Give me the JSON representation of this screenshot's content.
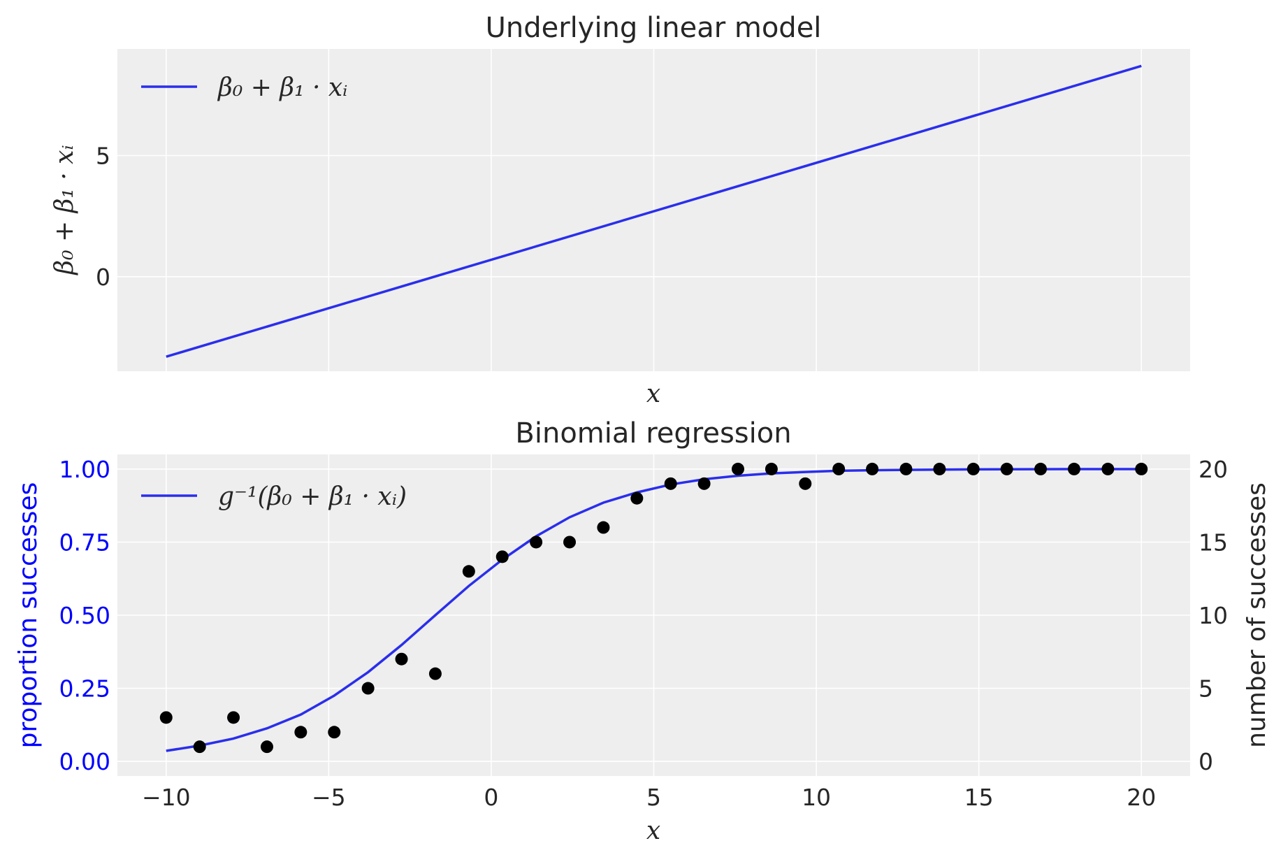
{
  "colors": {
    "line": "#2a2eec",
    "points": "#000000",
    "axes_bg": "#eeeeee",
    "grid": "#ffffff",
    "left_axis": "#0000ff"
  },
  "chart_data": [
    {
      "type": "line",
      "title": "Underlying linear model",
      "xlabel": "x",
      "ylabel": "β₀ + β₁ · xᵢ",
      "xlim": [
        -11.5,
        21.5
      ],
      "ylim": [
        -3.9,
        9.4
      ],
      "xticks": [
        -10,
        -5,
        0,
        5,
        10,
        15,
        20
      ],
      "show_x_tick_labels": false,
      "yticks": [
        0,
        5
      ],
      "ytick_labels": [
        "0",
        "5"
      ],
      "legend": {
        "position": "top-left",
        "label": "β₀ + β₁ · xᵢ"
      },
      "series": [
        {
          "name": "β₀ + β₁ · xᵢ",
          "x": [
            -10,
            20
          ],
          "y": [
            -3.3,
            8.7
          ]
        }
      ]
    },
    {
      "type": "line+scatter",
      "title": "Binomial regression",
      "xlabel": "x",
      "ylabel_left": "proportion successes",
      "ylabel_right": "number of successes",
      "xlim": [
        -11.5,
        21.5
      ],
      "ylim_left": [
        -0.05,
        1.05
      ],
      "ylim_right": [
        -1,
        21
      ],
      "xticks": [
        -10,
        -5,
        0,
        5,
        10,
        15,
        20
      ],
      "xtick_labels": [
        "−10",
        "−5",
        "0",
        "5",
        "10",
        "15",
        "20"
      ],
      "yticks_left": [
        0,
        0.25,
        0.5,
        0.75,
        1.0
      ],
      "ytick_labels_left": [
        "0.00",
        "0.25",
        "0.50",
        "0.75",
        "1.00"
      ],
      "yticks_right": [
        0,
        5,
        10,
        15,
        20
      ],
      "ytick_labels_right": [
        "0",
        "5",
        "10",
        "15",
        "20"
      ],
      "legend": {
        "position": "top-left",
        "label": "g⁻¹(β₀ + β₁ · xᵢ)"
      },
      "series": [
        {
          "name": "g⁻¹(β₀ + β₁ · xᵢ)",
          "axis": "left",
          "x": [
            -10,
            -8.97,
            -7.93,
            -6.9,
            -5.86,
            -4.83,
            -3.79,
            -2.76,
            -1.72,
            -0.69,
            0.34,
            1.38,
            2.41,
            3.45,
            4.48,
            5.52,
            6.55,
            7.59,
            8.62,
            9.66,
            10.69,
            11.72,
            12.76,
            13.79,
            14.83,
            15.86,
            16.9,
            17.93,
            18.97,
            20
          ],
          "y": [
            0.036,
            0.054,
            0.078,
            0.113,
            0.16,
            0.225,
            0.305,
            0.398,
            0.5,
            0.6,
            0.69,
            0.77,
            0.835,
            0.885,
            0.92,
            0.947,
            0.965,
            0.977,
            0.985,
            0.99,
            0.994,
            0.996,
            0.997,
            0.998,
            0.9988,
            0.9992,
            0.9995,
            0.9997,
            0.9998,
            0.9999
          ]
        },
        {
          "name": "number of successes",
          "axis": "right",
          "type": "scatter",
          "x": [
            -10,
            -8.97,
            -7.93,
            -6.9,
            -5.86,
            -4.83,
            -3.79,
            -2.76,
            -1.72,
            -0.69,
            0.34,
            1.38,
            2.41,
            3.45,
            4.48,
            5.52,
            6.55,
            7.59,
            8.62,
            9.66,
            10.69,
            11.72,
            12.76,
            13.79,
            14.83,
            15.86,
            16.9,
            17.93,
            18.97,
            20
          ],
          "y": [
            3,
            1,
            3,
            1,
            2,
            2,
            5,
            7,
            6,
            13,
            14,
            15,
            15,
            16,
            18,
            19,
            19,
            20,
            20,
            19,
            20,
            20,
            20,
            20,
            20,
            20,
            20,
            20,
            20,
            20
          ]
        }
      ]
    }
  ]
}
